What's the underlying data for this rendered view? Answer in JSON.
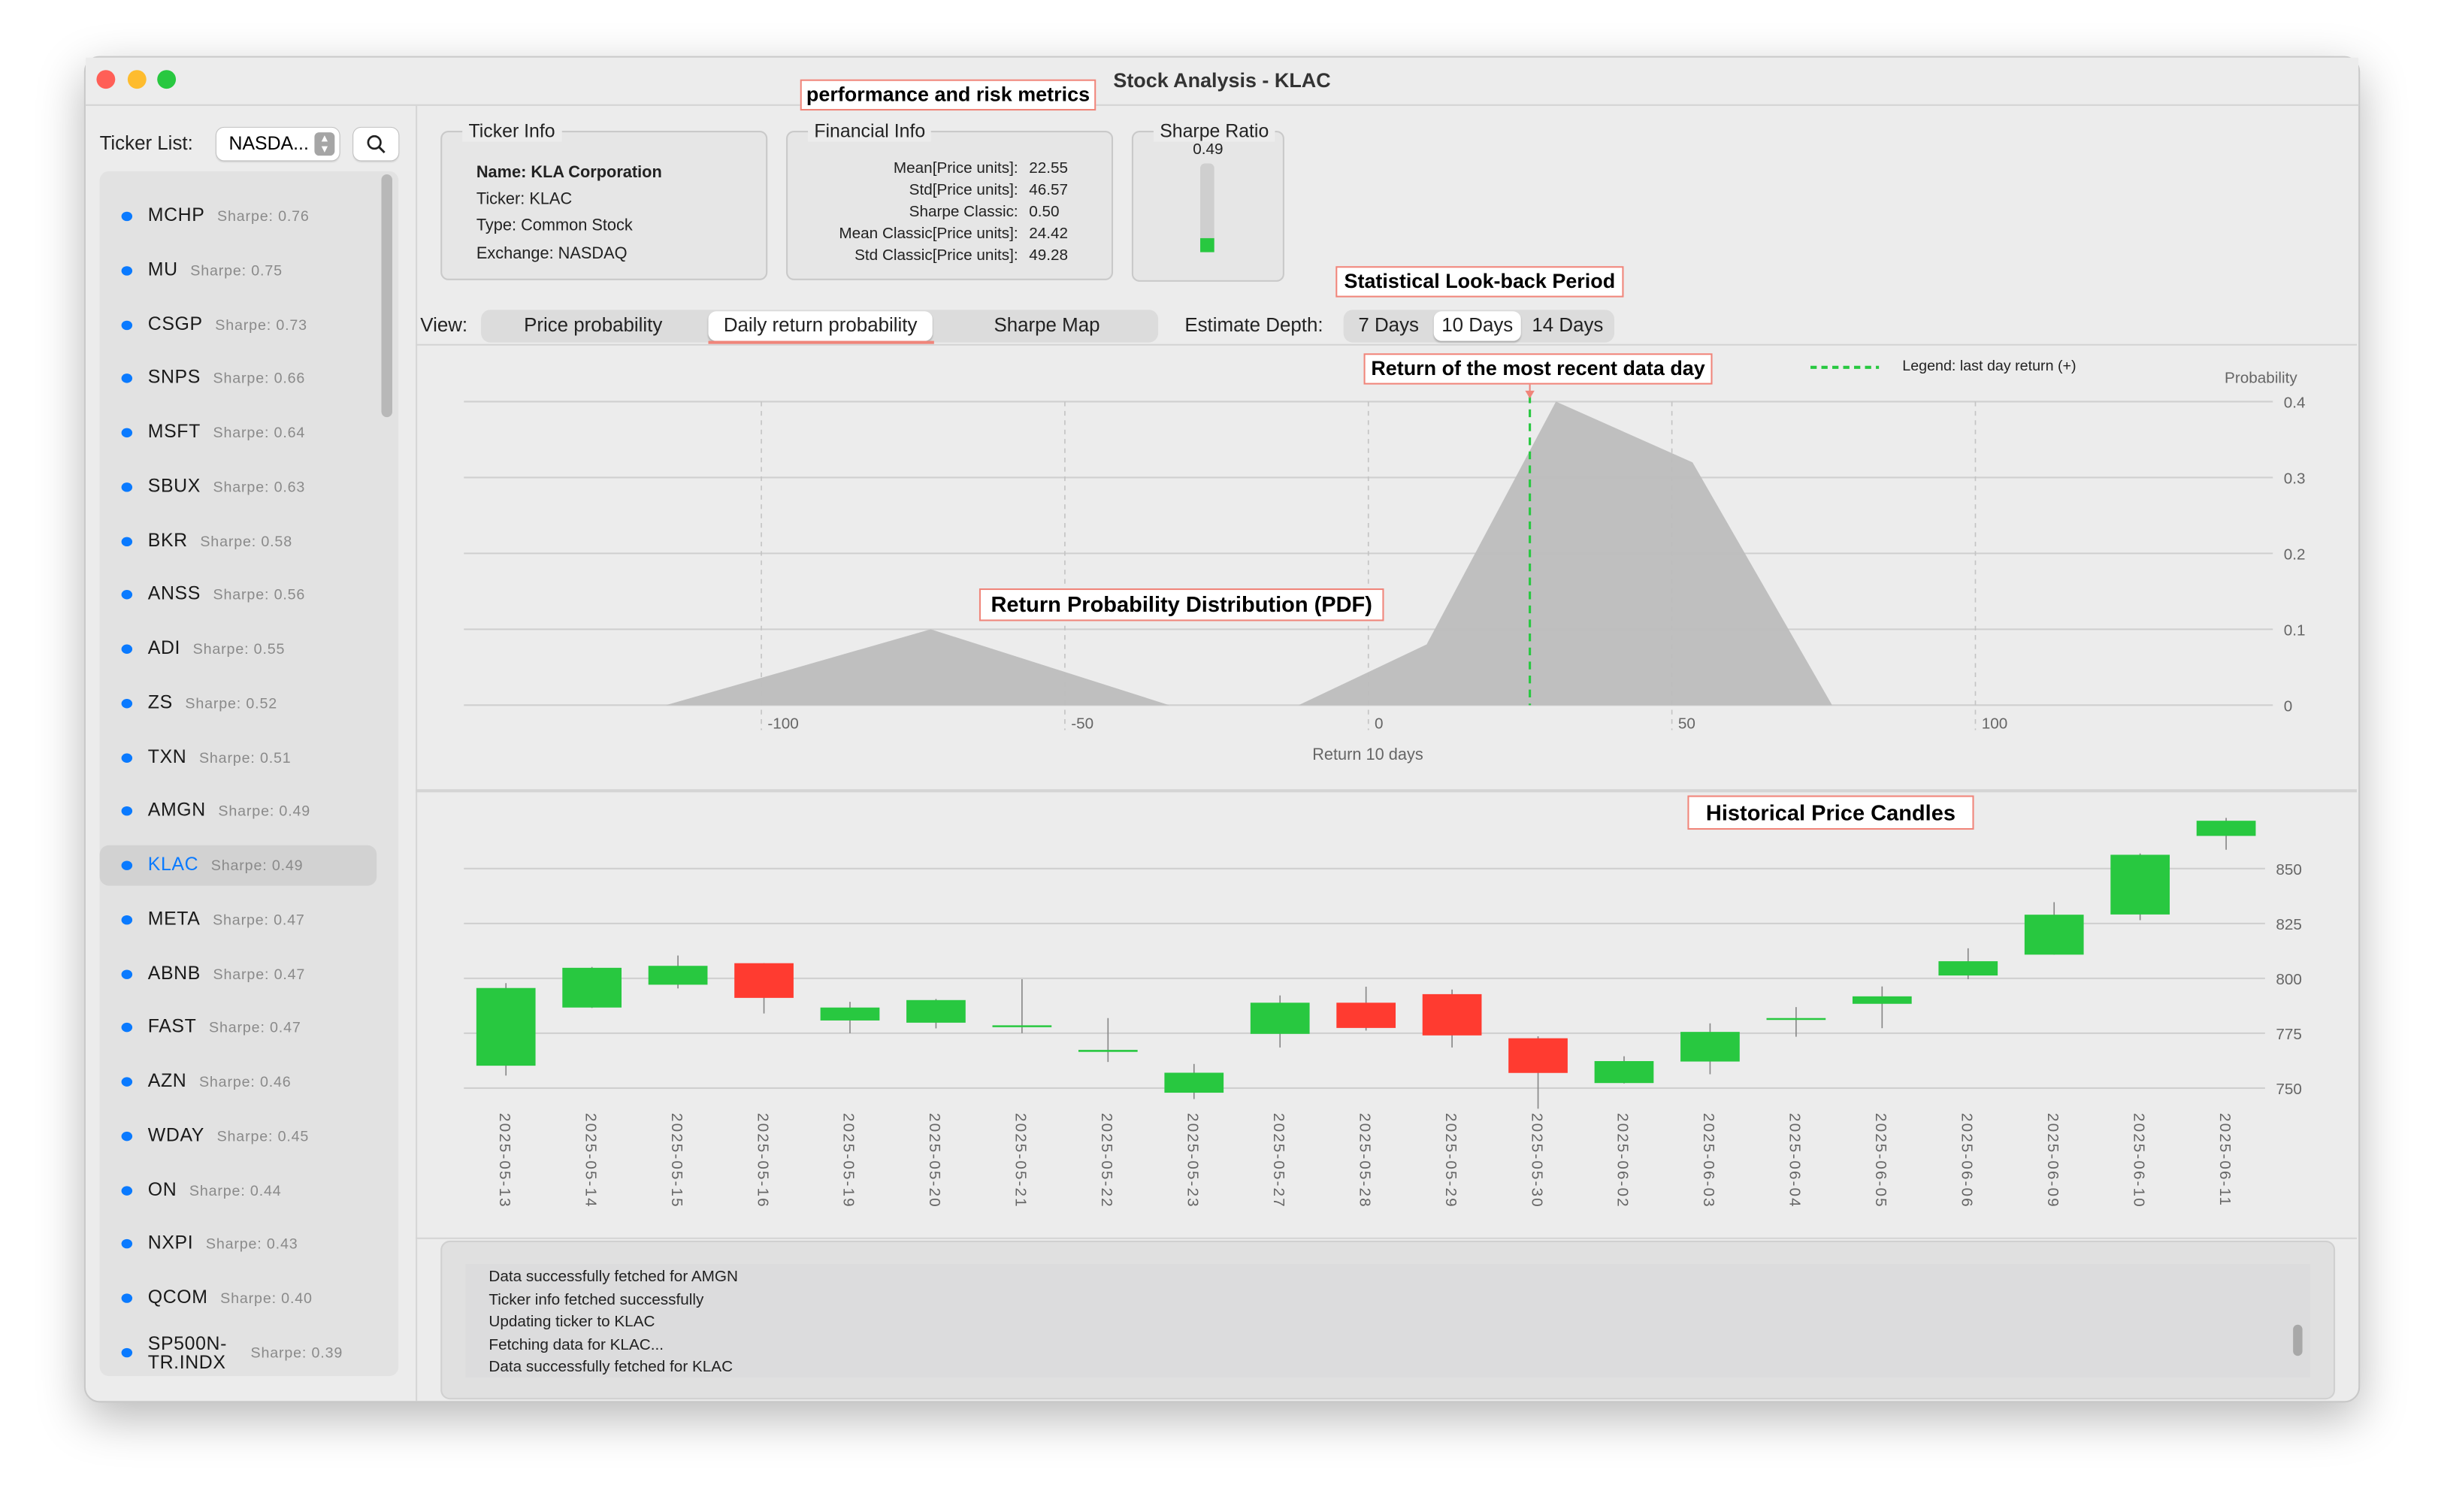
{
  "window": {
    "title": "Stock Analysis - KLAC"
  },
  "sidebar": {
    "ticker_list_label": "Ticker List:",
    "exchange_select_value": "NASDA...",
    "selected_ticker": "KLAC",
    "items": [
      {
        "ticker": "MCHP",
        "sharpe": "Sharpe: 0.76"
      },
      {
        "ticker": "MU",
        "sharpe": "Sharpe: 0.75"
      },
      {
        "ticker": "CSGP",
        "sharpe": "Sharpe: 0.73"
      },
      {
        "ticker": "SNPS",
        "sharpe": "Sharpe: 0.66"
      },
      {
        "ticker": "MSFT",
        "sharpe": "Sharpe: 0.64"
      },
      {
        "ticker": "SBUX",
        "sharpe": "Sharpe: 0.63"
      },
      {
        "ticker": "BKR",
        "sharpe": "Sharpe: 0.58"
      },
      {
        "ticker": "ANSS",
        "sharpe": "Sharpe: 0.56"
      },
      {
        "ticker": "ADI",
        "sharpe": "Sharpe: 0.55"
      },
      {
        "ticker": "ZS",
        "sharpe": "Sharpe: 0.52"
      },
      {
        "ticker": "TXN",
        "sharpe": "Sharpe: 0.51"
      },
      {
        "ticker": "AMGN",
        "sharpe": "Sharpe: 0.49"
      },
      {
        "ticker": "KLAC",
        "sharpe": "Sharpe: 0.49"
      },
      {
        "ticker": "META",
        "sharpe": "Sharpe: 0.47"
      },
      {
        "ticker": "ABNB",
        "sharpe": "Sharpe: 0.47"
      },
      {
        "ticker": "FAST",
        "sharpe": "Sharpe: 0.47"
      },
      {
        "ticker": "AZN",
        "sharpe": "Sharpe: 0.46"
      },
      {
        "ticker": "WDAY",
        "sharpe": "Sharpe: 0.45"
      },
      {
        "ticker": "ON",
        "sharpe": "Sharpe: 0.44"
      },
      {
        "ticker": "NXPI",
        "sharpe": "Sharpe: 0.43"
      },
      {
        "ticker": "QCOM",
        "sharpe": "Sharpe: 0.40"
      },
      {
        "ticker": "SP500N-TR.INDX",
        "sharpe": "Sharpe: 0.39"
      }
    ]
  },
  "ticker_info": {
    "title": "Ticker Info",
    "name": "Name: KLA Corporation",
    "ticker": "Ticker: KLAC",
    "type": "Type: Common Stock",
    "exchange": "Exchange: NASDAQ"
  },
  "financial_info": {
    "title": "Financial Info",
    "rows": [
      {
        "label": "Mean[Price units]:",
        "value": "22.55"
      },
      {
        "label": "Std[Price units]:",
        "value": "46.57"
      },
      {
        "label": "Sharpe Classic:",
        "value": "0.50"
      },
      {
        "label": "Mean Classic[Price units]:",
        "value": "24.42"
      },
      {
        "label": "Std Classic[Price units]:",
        "value": "49.28"
      }
    ]
  },
  "sharpe_ratio": {
    "title": "Sharpe Ratio",
    "value": "0.49",
    "bar_fill_fraction": 0.16,
    "bar_color": "#28c840"
  },
  "annotations": {
    "metrics": "performance and risk metrics",
    "lookback": "Statistical Look-back Period",
    "recent_return": "Return of the most recent data day",
    "pdf": "Return Probability Distribution (PDF)",
    "candles": "Historical Price Candles"
  },
  "view": {
    "label": "View:",
    "tabs": [
      "Price probability",
      "Daily return probability",
      "Sharpe Map"
    ],
    "active_tab": 1
  },
  "estimate_depth": {
    "label": "Estimate Depth:",
    "options": [
      "7 Days",
      "10 Days",
      "14 Days"
    ],
    "active": 1
  },
  "chart_data": [
    {
      "type": "area",
      "xlabel": "Return 10 days",
      "ylabel": "Probability",
      "xlim": [
        -149,
        149
      ],
      "ylim": [
        0,
        0.4
      ],
      "x_ticks": [
        "-100",
        "-50",
        "0",
        "50",
        "100"
      ],
      "x_tick_values": [
        -100,
        -50,
        0,
        50,
        100
      ],
      "y_ticks": [
        "0",
        "0.1",
        "0.2",
        "0.3",
        "0.4"
      ],
      "y_tick_values": [
        0,
        0.1,
        0.2,
        0.3,
        0.4
      ],
      "grid": true,
      "fill_color": "#bdbdbd",
      "points": [
        [
          -115.7,
          0
        ],
        [
          -72.1,
          0.1
        ],
        [
          -32.8,
          0
        ],
        [
          -11.5,
          0
        ],
        [
          9.6,
          0.08
        ],
        [
          30.9,
          0.4
        ],
        [
          53.4,
          0.32
        ],
        [
          76.4,
          0
        ]
      ],
      "last_day_return": 26.6,
      "last_day_line_color": "#28c840",
      "legend": "Legend: last day return (+)",
      "legend_position": "top-right"
    },
    {
      "type": "candlestick",
      "ylim": [
        740,
        875
      ],
      "y_ticks": [
        "750",
        "775",
        "800",
        "825",
        "850"
      ],
      "y_tick_values": [
        750,
        775,
        800,
        825,
        850
      ],
      "grid": true,
      "up_color": "#28c840",
      "down_color": "#ff3b30",
      "candles": [
        {
          "date": "2025-05-13",
          "open": 760.2,
          "high": 797.8,
          "low": 755.7,
          "close": 795.6
        },
        {
          "date": "2025-05-14",
          "open": 786.7,
          "high": 805.2,
          "low": 786.5,
          "close": 804.8
        },
        {
          "date": "2025-05-15",
          "open": 797.1,
          "high": 810.4,
          "low": 795.4,
          "close": 805.7
        },
        {
          "date": "2025-05-16",
          "open": 806.9,
          "high": 806.9,
          "low": 784.0,
          "close": 791.1
        },
        {
          "date": "2025-05-19",
          "open": 780.8,
          "high": 789.3,
          "low": 775.0,
          "close": 786.7
        },
        {
          "date": "2025-05-20",
          "open": 779.8,
          "high": 790.6,
          "low": 777.2,
          "close": 790.1
        },
        {
          "date": "2025-05-21",
          "open": 778.4,
          "high": 799.6,
          "low": 775.0,
          "close": 778.6
        },
        {
          "date": "2025-05-22",
          "open": 766.5,
          "high": 781.9,
          "low": 761.9,
          "close": 767.4
        },
        {
          "date": "2025-05-23",
          "open": 747.9,
          "high": 761.0,
          "low": 745.0,
          "close": 757.0
        },
        {
          "date": "2025-05-27",
          "open": 774.7,
          "high": 792.2,
          "low": 768.5,
          "close": 788.9
        },
        {
          "date": "2025-05-28",
          "open": 788.9,
          "high": 796.2,
          "low": 776.2,
          "close": 777.4
        },
        {
          "date": "2025-05-29",
          "open": 792.8,
          "high": 794.9,
          "low": 768.5,
          "close": 774.0
        },
        {
          "date": "2025-05-30",
          "open": 772.7,
          "high": 773.6,
          "low": 740.6,
          "close": 756.9
        },
        {
          "date": "2025-06-02",
          "open": 752.3,
          "high": 764.5,
          "low": 752.1,
          "close": 762.3
        },
        {
          "date": "2025-06-03",
          "open": 762.1,
          "high": 779.5,
          "low": 756.3,
          "close": 775.6
        },
        {
          "date": "2025-06-04",
          "open": 781.7,
          "high": 786.9,
          "low": 773.4,
          "close": 781.9
        },
        {
          "date": "2025-06-05",
          "open": 788.4,
          "high": 796.3,
          "low": 777.3,
          "close": 791.8
        },
        {
          "date": "2025-06-06",
          "open": 801.3,
          "high": 813.7,
          "low": 799.6,
          "close": 807.8
        },
        {
          "date": "2025-06-09",
          "open": 810.8,
          "high": 834.7,
          "low": 810.8,
          "close": 829.0
        },
        {
          "date": "2025-06-10",
          "open": 829.1,
          "high": 856.9,
          "low": 826.5,
          "close": 856.3
        },
        {
          "date": "2025-06-11",
          "open": 864.9,
          "high": 873.1,
          "low": 858.6,
          "close": 871.8
        }
      ]
    }
  ],
  "log": {
    "lines": [
      "Data successfully fetched for AMGN",
      "Ticker info fetched successfully",
      "Updating ticker to KLAC",
      "Fetching data for KLAC...",
      "Data successfully fetched for KLAC"
    ]
  }
}
